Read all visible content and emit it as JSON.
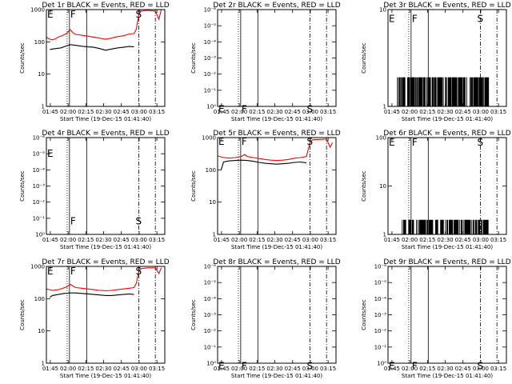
{
  "window": {
    "width": 640,
    "height": 480
  },
  "colors": {
    "events": "#000000",
    "lld": "#ff0000",
    "background": "#ffffff"
  },
  "shared": {
    "xlabel": "Start Time (19-Dec-15 01:41:40)",
    "ylabel": "Counts/sec",
    "x_ticks": [
      "01:45",
      "02:00",
      "02:15",
      "02:30",
      "02:45",
      "03:00",
      "03:15"
    ],
    "x_tick_minutes": [
      3.33,
      18.33,
      33.33,
      48.33,
      63.33,
      78.33,
      93.33
    ],
    "xlim_minutes": [
      0,
      100
    ],
    "markers": {
      "F": {
        "label": "F",
        "dotted_x": 17.5,
        "solid_x": [
          19.5,
          34.0
        ]
      },
      "S": {
        "label": "S",
        "dashdot_x": 78.0,
        "dashdot2_x": 92.0
      },
      "E_label": "E"
    }
  },
  "chart_data": [
    {
      "id": "det1r",
      "title": "Det 1r BLACK = Events, RED = LLD",
      "type": "line",
      "yscale": "log",
      "ylim": [
        1,
        1000
      ],
      "y_ticks": [
        {
          "v": 1,
          "label": "1"
        },
        {
          "v": 10,
          "label": "10"
        },
        {
          "v": 100,
          "label": "100"
        },
        {
          "v": 1000,
          "label": "1000"
        }
      ],
      "series": [
        {
          "role": "events",
          "x": [
            3,
            5,
            8,
            12,
            17,
            20,
            25,
            30,
            35,
            40,
            45,
            50,
            55,
            60,
            65,
            70,
            74
          ],
          "y": [
            58,
            60,
            62,
            65,
            75,
            82,
            78,
            73,
            70,
            68,
            62,
            55,
            60,
            65,
            68,
            72,
            70
          ]
        },
        {
          "role": "lld",
          "x": [
            0,
            2,
            5,
            8,
            10,
            14,
            17,
            20,
            23,
            25,
            30,
            35,
            40,
            45,
            50,
            55,
            60,
            65,
            70,
            74,
            76,
            78,
            80,
            85,
            92,
            95,
            97,
            100
          ],
          "y": [
            140,
            125,
            115,
            125,
            140,
            160,
            180,
            240,
            185,
            170,
            160,
            150,
            140,
            130,
            120,
            130,
            145,
            155,
            175,
            180,
            250,
            700,
            900,
            950,
            900,
            500,
            1000,
            1000
          ]
        }
      ],
      "letters": {
        "E_y": 720,
        "F_y": 720,
        "S_y": 720
      }
    },
    {
      "id": "det2r",
      "title": "Det 2r BLACK = Events, RED = LLD",
      "type": "line",
      "yscale": "log",
      "ylim": [
        1,
        1e-06
      ],
      "y_ticks": [
        {
          "v": 1,
          "label": "10⁰"
        },
        {
          "v": 0.1,
          "label": "10⁻¹"
        },
        {
          "v": 0.01,
          "label": "10⁻²"
        },
        {
          "v": 0.001,
          "label": "10⁻³"
        },
        {
          "v": 0.0001,
          "label": "10⁻⁴"
        },
        {
          "v": 1e-05,
          "label": "10⁻⁵"
        },
        {
          "v": 1e-06,
          "label": "10⁻⁶"
        }
      ],
      "series": [],
      "letters": {
        "E_y": 1.5,
        "F_y": 1.5,
        "S_y": 1.5
      }
    },
    {
      "id": "det3r",
      "title": "Det 3r BLACK = Events, RED = LLD",
      "type": "line",
      "yscale": "log",
      "ylim": [
        1,
        10
      ],
      "y_ticks": [
        {
          "v": 1,
          "label": "1"
        },
        {
          "v": 10,
          "label": "10"
        }
      ],
      "series": [
        {
          "role": "events_spikes",
          "range_x": [
            8,
            85
          ],
          "low": 1,
          "high": 2,
          "step": 0.45
        }
      ],
      "letters": {
        "E_y": 8,
        "F_y": 8,
        "S_y": 8
      }
    },
    {
      "id": "det4r",
      "title": "Det 4r BLACK = Events, RED = LLD",
      "type": "line",
      "yscale": "log",
      "ylim": [
        1,
        1e-06
      ],
      "y_ticks": [
        {
          "v": 1,
          "label": "10⁰"
        },
        {
          "v": 0.1,
          "label": "10⁻¹"
        },
        {
          "v": 0.01,
          "label": "10⁻²"
        },
        {
          "v": 0.001,
          "label": "10⁻³"
        },
        {
          "v": 0.0001,
          "label": "10⁻⁴"
        },
        {
          "v": 1e-05,
          "label": "10⁻⁵"
        },
        {
          "v": 1e-06,
          "label": "10⁻⁶"
        }
      ],
      "series": [],
      "letters": {
        "E_y": 1e-05,
        "F_y": 0.15,
        "S_y": 0.15
      }
    },
    {
      "id": "det5r",
      "title": "Det 5r BLACK = Events, RED = LLD",
      "type": "line",
      "yscale": "log",
      "ylim": [
        1,
        1000
      ],
      "y_ticks": [
        {
          "v": 1,
          "label": "1"
        },
        {
          "v": 10,
          "label": "10"
        },
        {
          "v": 100,
          "label": "100"
        },
        {
          "v": 1000,
          "label": "1000"
        }
      ],
      "series": [
        {
          "role": "events",
          "x": [
            3,
            5,
            10,
            15,
            20,
            25,
            30,
            35,
            40,
            45,
            50,
            55,
            60,
            65,
            70,
            75
          ],
          "y": [
            100,
            175,
            190,
            195,
            200,
            195,
            185,
            170,
            160,
            155,
            150,
            155,
            160,
            170,
            175,
            165
          ]
        },
        {
          "role": "lld",
          "x": [
            0,
            5,
            10,
            15,
            20,
            23,
            25,
            30,
            35,
            40,
            45,
            50,
            55,
            60,
            65,
            70,
            75,
            77,
            78,
            80,
            92,
            95,
            97
          ],
          "y": [
            270,
            240,
            230,
            240,
            260,
            300,
            260,
            240,
            225,
            210,
            200,
            195,
            200,
            210,
            230,
            240,
            260,
            500,
            700,
            850,
            900,
            500,
            700
          ]
        }
      ],
      "letters": {
        "E_y": 750,
        "F_y": 750,
        "S_y": 750
      }
    },
    {
      "id": "det6r",
      "title": "Det 6r BLACK = Events, RED = LLD",
      "type": "line",
      "yscale": "log",
      "ylim": [
        1,
        100
      ],
      "y_ticks": [
        {
          "v": 1,
          "label": "1"
        },
        {
          "v": 10,
          "label": "10"
        },
        {
          "v": 100,
          "label": "100"
        }
      ],
      "series": [
        {
          "role": "events_spikes",
          "range_x": [
            12,
            85
          ],
          "low": 1,
          "high": 2,
          "step": 0.6
        }
      ],
      "letters": {
        "E_y": 80,
        "F_y": 80,
        "S_y": 80
      }
    },
    {
      "id": "det7r",
      "title": "Det 7r BLACK = Events, RED = LLD",
      "type": "line",
      "yscale": "log",
      "ylim": [
        1,
        1000
      ],
      "y_ticks": [
        {
          "v": 1,
          "label": "1"
        },
        {
          "v": 10,
          "label": "10"
        },
        {
          "v": 100,
          "label": "100"
        },
        {
          "v": 1000,
          "label": "1000"
        }
      ],
      "series": [
        {
          "role": "events",
          "x": [
            3,
            5,
            10,
            15,
            20,
            25,
            30,
            35,
            40,
            45,
            50,
            55,
            60,
            65,
            70,
            74
          ],
          "y": [
            110,
            125,
            135,
            145,
            150,
            150,
            145,
            140,
            135,
            130,
            125,
            125,
            130,
            135,
            140,
            135
          ]
        },
        {
          "role": "lld",
          "x": [
            0,
            3,
            5,
            10,
            14,
            17,
            20,
            23,
            25,
            30,
            35,
            40,
            45,
            50,
            55,
            60,
            65,
            70,
            74,
            76,
            78,
            80,
            85,
            92,
            95,
            97
          ],
          "y": [
            200,
            190,
            180,
            190,
            210,
            230,
            280,
            240,
            220,
            210,
            200,
            190,
            180,
            175,
            180,
            190,
            200,
            210,
            220,
            300,
            700,
            850,
            900,
            900,
            600,
            900
          ]
        }
      ],
      "letters": {
        "E_y": 720,
        "F_y": 720,
        "S_y": 720
      }
    },
    {
      "id": "det8r",
      "title": "Det 8r BLACK = Events, RED = LLD",
      "type": "line",
      "yscale": "log",
      "ylim": [
        1,
        1e-06
      ],
      "y_ticks": [
        {
          "v": 1,
          "label": "10⁰"
        },
        {
          "v": 0.1,
          "label": "10⁻¹"
        },
        {
          "v": 0.01,
          "label": "10⁻²"
        },
        {
          "v": 0.001,
          "label": "10⁻³"
        },
        {
          "v": 0.0001,
          "label": "10⁻⁴"
        },
        {
          "v": 1e-05,
          "label": "10⁻⁵"
        },
        {
          "v": 1e-06,
          "label": "10⁻⁶"
        }
      ],
      "series": [],
      "letters": {
        "E_y": 1.5,
        "F_y": 1.5,
        "S_y": 1.5
      }
    },
    {
      "id": "det9r",
      "title": "Det 9r BLACK = Events, RED = LLD",
      "type": "line",
      "yscale": "log",
      "ylim": [
        1,
        1e-06
      ],
      "y_ticks": [
        {
          "v": 1,
          "label": "10⁰"
        },
        {
          "v": 0.1,
          "label": "10⁻¹"
        },
        {
          "v": 0.01,
          "label": "10⁻²"
        },
        {
          "v": 0.001,
          "label": "10⁻³"
        },
        {
          "v": 0.0001,
          "label": "10⁻⁴"
        },
        {
          "v": 1e-05,
          "label": "10⁻⁵"
        },
        {
          "v": 1e-06,
          "label": "10⁻⁶"
        }
      ],
      "series": [],
      "letters": {
        "E_y": 1.5,
        "F_y": 1.5,
        "S_y": 1.5
      }
    }
  ]
}
